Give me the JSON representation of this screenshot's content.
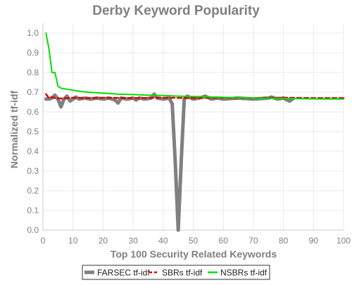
{
  "chart_data": {
    "type": "line",
    "title": "Derby Keyword Popularity",
    "xlabel": "Top 100 Security Related Keywords",
    "ylabel": "Normalized tf-idf",
    "xlim": [
      0,
      100
    ],
    "ylim": [
      0,
      1.05
    ],
    "xticks": [
      0,
      10,
      20,
      30,
      40,
      50,
      60,
      70,
      80,
      90,
      100
    ],
    "yticks": [
      0.0,
      0.1,
      0.2,
      0.3,
      0.4,
      0.5,
      0.6,
      0.7,
      0.8,
      0.9,
      1.0
    ],
    "ytick_labels": [
      "0.0",
      "0.1",
      "0.2",
      "0.3",
      "0.4",
      "0.5",
      "0.6",
      "0.7",
      "0.8",
      "0.9",
      "1.0"
    ],
    "grid": true,
    "legend_position": "bottom",
    "series": [
      {
        "name": "FARSEC tf-idf",
        "color": "#808080",
        "dash": "solid",
        "x": [
          1,
          2,
          3,
          4,
          5,
          6,
          7,
          8,
          9,
          10,
          11,
          12,
          14,
          16,
          18,
          20,
          22,
          24,
          25,
          26,
          28,
          30,
          31,
          32,
          34,
          36,
          37,
          38,
          40,
          42,
          43,
          44,
          45,
          46,
          47,
          48,
          50,
          52,
          54,
          56,
          58,
          60,
          65,
          70,
          75,
          76,
          78,
          80,
          82,
          83
        ],
        "y": [
          0.665,
          0.665,
          0.67,
          0.685,
          0.665,
          0.625,
          0.665,
          0.68,
          0.655,
          0.665,
          0.675,
          0.665,
          0.67,
          0.665,
          0.67,
          0.665,
          0.67,
          0.66,
          0.645,
          0.67,
          0.665,
          0.67,
          0.66,
          0.67,
          0.665,
          0.67,
          0.69,
          0.67,
          0.665,
          0.67,
          0.64,
          0.35,
          0.0,
          0.35,
          0.665,
          0.68,
          0.665,
          0.67,
          0.68,
          0.665,
          0.67,
          0.665,
          0.67,
          0.665,
          0.67,
          0.675,
          0.665,
          0.67,
          0.655,
          0.665
        ]
      },
      {
        "name": "SBRs tf-idf",
        "color": "#dd0000",
        "dash": "dashed",
        "x": [
          1,
          2,
          3,
          4,
          6,
          8,
          10,
          15,
          20,
          30,
          40,
          50,
          60,
          70,
          80,
          90,
          100
        ],
        "y": [
          0.69,
          0.67,
          0.675,
          0.67,
          0.668,
          0.67,
          0.672,
          0.67,
          0.672,
          0.67,
          0.672,
          0.67,
          0.672,
          0.67,
          0.672,
          0.67,
          0.67
        ]
      },
      {
        "name": "NSBRs tf-idf",
        "color": "#00e000",
        "dash": "solid",
        "x": [
          1,
          2,
          3,
          4,
          5,
          6,
          8,
          10,
          12,
          15,
          20,
          25,
          30,
          35,
          40,
          45,
          50,
          55,
          60,
          65,
          70,
          80,
          90,
          100
        ],
        "y": [
          1.0,
          0.92,
          0.8,
          0.8,
          0.73,
          0.72,
          0.715,
          0.71,
          0.705,
          0.7,
          0.695,
          0.69,
          0.688,
          0.685,
          0.683,
          0.68,
          0.678,
          0.676,
          0.674,
          0.672,
          0.67,
          0.668,
          0.666,
          0.665
        ]
      }
    ]
  }
}
